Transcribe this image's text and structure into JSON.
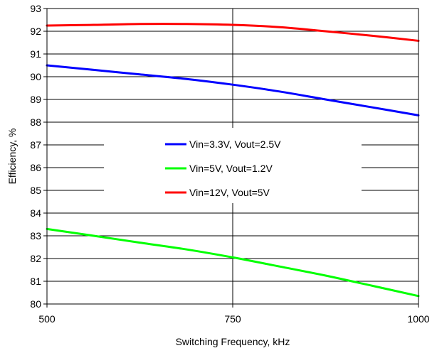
{
  "chart_data": {
    "type": "line",
    "xlabel": "Switching Frequency, kHz",
    "ylabel": "Efficiency, %",
    "xlim": [
      500,
      1000
    ],
    "ylim": [
      80,
      93
    ],
    "x_ticks": [
      500,
      750,
      1000
    ],
    "y_ticks": [
      80,
      81,
      82,
      83,
      84,
      85,
      86,
      87,
      88,
      89,
      90,
      91,
      92,
      93
    ],
    "grid": {
      "horizontal": true,
      "vertical": true
    },
    "legend_position": "center",
    "series": [
      {
        "name": "Vin=3.3V, Vout=2.5V",
        "color": "#0000ff",
        "x": [
          500,
          563,
          625,
          688,
          750,
          813,
          875,
          938,
          1000
        ],
        "y": [
          90.5,
          90.3,
          90.1,
          89.9,
          89.65,
          89.35,
          89.0,
          88.65,
          88.3
        ]
      },
      {
        "name": "Vin=5V, Vout=1.2V",
        "color": "#00ff00",
        "x": [
          500,
          563,
          625,
          688,
          750,
          813,
          875,
          938,
          1000
        ],
        "y": [
          83.3,
          83.0,
          82.7,
          82.4,
          82.05,
          81.65,
          81.25,
          80.8,
          80.35
        ]
      },
      {
        "name": "Vin=12V, Vout=5V",
        "color": "#ff0000",
        "x": [
          500,
          563,
          625,
          688,
          750,
          813,
          875,
          938,
          1000
        ],
        "y": [
          92.25,
          92.28,
          92.32,
          92.32,
          92.28,
          92.18,
          92.0,
          91.8,
          91.58
        ]
      }
    ]
  }
}
